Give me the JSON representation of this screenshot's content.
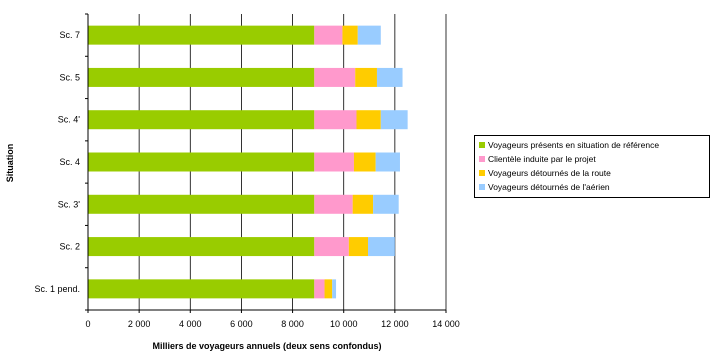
{
  "chart_data": {
    "type": "bar",
    "orientation": "horizontal",
    "stacked": true,
    "categories": [
      "Sc. 7",
      "Sc. 5",
      "Sc. 4'",
      "Sc. 4",
      "Sc. 3'",
      "Sc. 2",
      "Sc. 1 pend."
    ],
    "series": [
      {
        "name": "Voyageurs présents en situation de référence",
        "color": "#99cc00",
        "values": [
          8850,
          8850,
          8850,
          8850,
          8850,
          8850,
          8850
        ]
      },
      {
        "name": "Clientèle induite par le projet",
        "color": "#ff99cc",
        "values": [
          1100,
          1600,
          1650,
          1550,
          1500,
          1350,
          400
        ]
      },
      {
        "name": "Voyageurs détournés de la route",
        "color": "#ffcc00",
        "values": [
          600,
          850,
          950,
          850,
          800,
          750,
          300
        ]
      },
      {
        "name": "Voyageurs détournés de l'aérien",
        "color": "#99ccff",
        "values": [
          900,
          1000,
          1050,
          950,
          1000,
          1050,
          150
        ]
      }
    ],
    "xlabel": "Milliers de voyageurs annuels (deux sens confondus)",
    "ylabel": "Situation",
    "xlim": [
      0,
      14000
    ],
    "xticks": [
      0,
      2000,
      4000,
      6000,
      8000,
      10000,
      12000,
      14000
    ],
    "xtick_labels": [
      "0",
      "2 000",
      "4 000",
      "6 000",
      "8 000",
      "10 000",
      "12 000",
      "14 000"
    ],
    "grid": "vertical",
    "legend": "right"
  }
}
